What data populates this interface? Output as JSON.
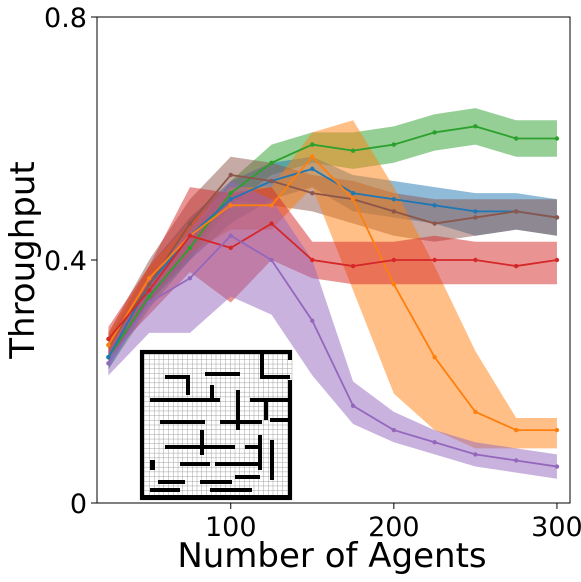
{
  "chart_data": {
    "type": "line",
    "xlabel": "Number of Agents",
    "ylabel": "Throughput",
    "xlim": [
      18,
      308
    ],
    "ylim": [
      0,
      0.8
    ],
    "xticks": [
      "100",
      "200",
      "300"
    ],
    "yticks": [
      "0",
      "0.4",
      "0.8"
    ],
    "x": [
      25,
      50,
      75,
      100,
      125,
      150,
      175,
      200,
      225,
      250,
      275,
      300
    ],
    "series": [
      {
        "color": "#2ca02c",
        "values": [
          0.24,
          0.34,
          0.42,
          0.51,
          0.56,
          0.59,
          0.58,
          0.59,
          0.61,
          0.62,
          0.6,
          0.6
        ],
        "lower": [
          0.22,
          0.32,
          0.4,
          0.49,
          0.54,
          0.56,
          0.55,
          0.56,
          0.58,
          0.59,
          0.57,
          0.57
        ],
        "upper": [
          0.26,
          0.36,
          0.44,
          0.53,
          0.59,
          0.61,
          0.61,
          0.62,
          0.64,
          0.65,
          0.63,
          0.63
        ]
      },
      {
        "color": "#1f77b4",
        "values": [
          0.24,
          0.36,
          0.44,
          0.5,
          0.53,
          0.55,
          0.51,
          0.5,
          0.49,
          0.48,
          0.48,
          0.47
        ],
        "lower": [
          0.22,
          0.33,
          0.4,
          0.46,
          0.5,
          0.52,
          0.48,
          0.47,
          0.46,
          0.44,
          0.45,
          0.44
        ],
        "upper": [
          0.27,
          0.39,
          0.47,
          0.53,
          0.56,
          0.57,
          0.54,
          0.53,
          0.52,
          0.51,
          0.51,
          0.5
        ]
      },
      {
        "color": "#8c564b",
        "values": [
          0.26,
          0.36,
          0.46,
          0.54,
          0.53,
          0.51,
          0.5,
          0.48,
          0.46,
          0.47,
          0.48,
          0.47
        ],
        "lower": [
          0.23,
          0.33,
          0.41,
          0.5,
          0.49,
          0.48,
          0.46,
          0.44,
          0.43,
          0.44,
          0.45,
          0.44
        ],
        "upper": [
          0.28,
          0.4,
          0.5,
          0.57,
          0.56,
          0.54,
          0.53,
          0.51,
          0.5,
          0.5,
          0.5,
          0.5
        ]
      },
      {
        "color": "#ff7f0e",
        "values": [
          0.26,
          0.37,
          0.44,
          0.49,
          0.49,
          0.57,
          0.5,
          0.36,
          0.24,
          0.15,
          0.12,
          0.12
        ],
        "lower": [
          0.24,
          0.35,
          0.41,
          0.45,
          0.45,
          0.52,
          0.35,
          0.18,
          0.12,
          0.09,
          0.09,
          0.09
        ],
        "upper": [
          0.28,
          0.39,
          0.46,
          0.52,
          0.52,
          0.61,
          0.63,
          0.52,
          0.39,
          0.25,
          0.14,
          0.14
        ]
      },
      {
        "color": "#d62728",
        "values": [
          0.27,
          0.35,
          0.44,
          0.42,
          0.46,
          0.4,
          0.39,
          0.4,
          0.4,
          0.4,
          0.39,
          0.4
        ],
        "lower": [
          0.24,
          0.31,
          0.38,
          0.33,
          0.4,
          0.37,
          0.36,
          0.36,
          0.36,
          0.36,
          0.36,
          0.36
        ],
        "upper": [
          0.29,
          0.39,
          0.52,
          0.51,
          0.52,
          0.43,
          0.43,
          0.43,
          0.44,
          0.43,
          0.43,
          0.43
        ]
      },
      {
        "color": "#9467bd",
        "values": [
          0.23,
          0.33,
          0.37,
          0.44,
          0.4,
          0.3,
          0.16,
          0.12,
          0.1,
          0.08,
          0.07,
          0.06
        ],
        "lower": [
          0.21,
          0.28,
          0.28,
          0.34,
          0.31,
          0.21,
          0.13,
          0.1,
          0.08,
          0.06,
          0.05,
          0.04
        ],
        "upper": [
          0.25,
          0.37,
          0.45,
          0.53,
          0.5,
          0.4,
          0.2,
          0.15,
          0.12,
          0.1,
          0.09,
          0.08
        ]
      }
    ],
    "grid": false,
    "legend": "none",
    "inset": "maze-grid-map",
    "plot_type_detail": "line with shaded confidence bands and point markers"
  }
}
